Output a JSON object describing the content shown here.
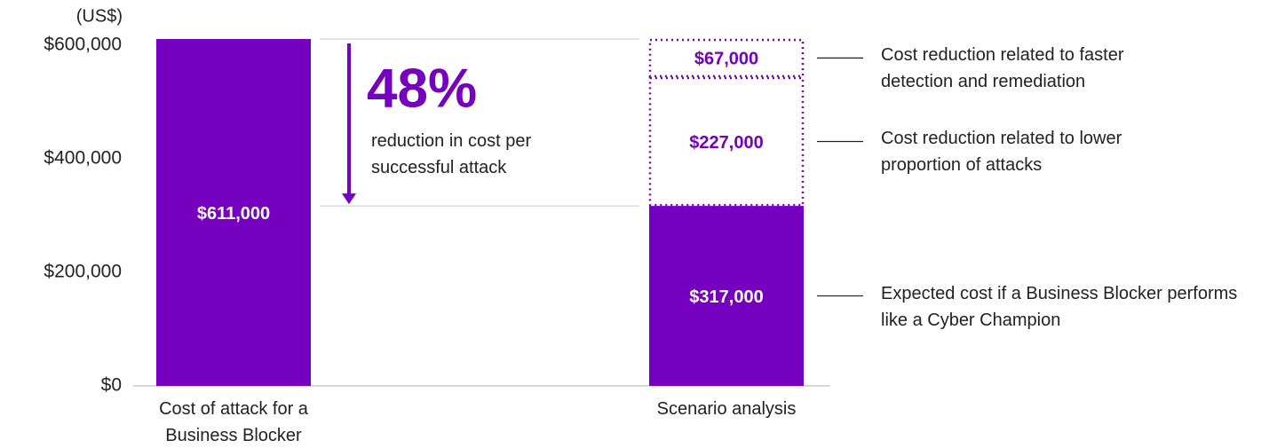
{
  "chart_data": {
    "type": "bar",
    "stacked": true,
    "unit_label": "(US$)",
    "categories": [
      "Cost of attack for a Business Blocker",
      "Scenario analysis"
    ],
    "series": [
      {
        "color": "#7500c0",
        "style": "solid",
        "values": [
          611000,
          null
        ],
        "value_labels": [
          "$611,000",
          null
        ]
      },
      {
        "name": "Expected cost if a Business Blocker performs like a Cyber Champion",
        "color": "#7500c0",
        "style": "solid",
        "values": [
          null,
          317000
        ],
        "value_labels": [
          null,
          "$317,000"
        ]
      },
      {
        "name": "Cost reduction related to lower proportion of attacks",
        "color": "#7500c0",
        "style": "dotted",
        "values": [
          null,
          227000
        ],
        "value_labels": [
          null,
          "$227,000"
        ]
      },
      {
        "name": "Cost reduction related to faster detection and remediation",
        "color": "#7500c0",
        "style": "dotted",
        "values": [
          null,
          67000
        ],
        "value_labels": [
          null,
          "$67,000"
        ]
      }
    ],
    "annotation": {
      "value": "48%",
      "text": "reduction in cost per successful attack"
    },
    "ylim": [
      0,
      600000
    ],
    "yticks": [
      {
        "value": 0,
        "label": "$0"
      },
      {
        "value": 200000,
        "label": "$200,000"
      },
      {
        "value": 400000,
        "label": "$400,000"
      },
      {
        "value": 600000,
        "label": "$600,000"
      }
    ],
    "grid": false
  }
}
